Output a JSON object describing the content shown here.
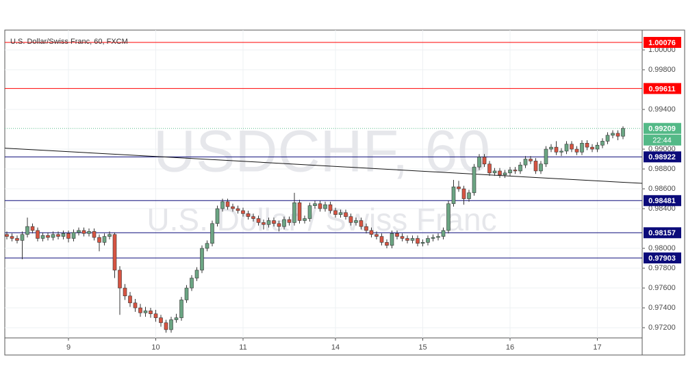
{
  "chart_data": {
    "type": "candlestick",
    "title": "U.S. Dollar/Swiss Franc, 60, FXCM",
    "watermark": "USDCHF, 60",
    "watermark_subtitle": "U.S. Dollar / Swiss Franc",
    "categories": [
      null,
      null,
      null,
      null,
      null,
      null,
      null,
      null,
      null,
      null,
      null,
      null,
      "9",
      null,
      null,
      null,
      null,
      null,
      null,
      null,
      null,
      null,
      null,
      null,
      null,
      null,
      null,
      null,
      null,
      "10",
      null,
      null,
      null,
      null,
      null,
      null,
      null,
      null,
      null,
      null,
      null,
      null,
      null,
      null,
      null,
      null,
      "11",
      null,
      null,
      null,
      null,
      null,
      null,
      null,
      null,
      null,
      null,
      null,
      null,
      null,
      null,
      null,
      null,
      null,
      "14",
      null,
      null,
      null,
      null,
      null,
      null,
      null,
      null,
      null,
      null,
      null,
      null,
      null,
      null,
      null,
      null,
      "15",
      null,
      null,
      null,
      null,
      null,
      null,
      null,
      null,
      null,
      null,
      null,
      null,
      null,
      null,
      null,
      null,
      "16",
      null,
      null,
      null,
      null,
      null,
      null,
      null,
      null,
      null,
      null,
      null,
      null,
      null,
      null,
      null,
      null,
      "17",
      null,
      null,
      null,
      null,
      null
    ],
    "open": [
      0.9814,
      0.9812,
      0.981,
      0.9808,
      0.9814,
      0.9822,
      0.9818,
      0.981,
      0.9813,
      0.9811,
      0.9814,
      0.9812,
      0.9815,
      0.981,
      0.9816,
      0.9818,
      0.9815,
      0.9817,
      0.9811,
      0.9806,
      0.9812,
      0.9814,
      0.9778,
      0.976,
      0.9752,
      0.9745,
      0.974,
      0.9735,
      0.9737,
      0.9734,
      0.973,
      0.9725,
      0.9718,
      0.9728,
      0.973,
      0.9748,
      0.976,
      0.977,
      0.9778,
      0.98,
      0.9805,
      0.9825,
      0.984,
      0.9847,
      0.9842,
      0.984,
      0.9838,
      0.9835,
      0.9832,
      0.983,
      0.9826,
      0.9824,
      0.9828,
      0.9825,
      0.9822,
      0.9829,
      0.9826,
      0.9846,
      0.9828,
      0.983,
      0.9843,
      0.9845,
      0.984,
      0.9844,
      0.9838,
      0.9834,
      0.9836,
      0.9832,
      0.9826,
      0.9828,
      0.9822,
      0.9818,
      0.9814,
      0.9812,
      0.9806,
      0.9803,
      0.9815,
      0.9812,
      0.981,
      0.9808,
      0.981,
      0.9805,
      0.9806,
      0.981,
      0.9811,
      0.9812,
      0.9818,
      0.9845,
      0.9862,
      0.986,
      0.985,
      0.9856,
      0.9882,
      0.9892,
      0.9885,
      0.9876,
      0.9878,
      0.9874,
      0.9876,
      0.9879,
      0.9878,
      0.9884,
      0.989,
      0.9888,
      0.9878,
      0.9885,
      0.99,
      0.9902,
      0.9897,
      0.9898,
      0.9905,
      0.99,
      0.9897,
      0.9906,
      0.9902,
      0.99,
      0.9904,
      0.9908,
      0.9914,
      0.9916,
      0.9913
    ],
    "high": [
      0.9817,
      0.9815,
      0.9813,
      0.9817,
      0.9831,
      0.9825,
      0.9821,
      0.9816,
      0.9816,
      0.9817,
      0.9817,
      0.9818,
      0.9818,
      0.9819,
      0.9821,
      0.9821,
      0.982,
      0.982,
      0.9814,
      0.9815,
      0.9817,
      0.9816,
      0.9782,
      0.9764,
      0.9756,
      0.9749,
      0.9744,
      0.9741,
      0.974,
      0.9738,
      0.9733,
      0.9728,
      0.9731,
      0.9734,
      0.9751,
      0.9763,
      0.9773,
      0.9781,
      0.9803,
      0.9808,
      0.9828,
      0.9843,
      0.985,
      0.985,
      0.9845,
      0.9843,
      0.9841,
      0.9838,
      0.9835,
      0.9833,
      0.9829,
      0.9831,
      0.9831,
      0.9828,
      0.9832,
      0.9832,
      0.9856,
      0.9849,
      0.9833,
      0.9846,
      0.9848,
      0.9848,
      0.9847,
      0.9847,
      0.9841,
      0.9839,
      0.9839,
      0.9835,
      0.9831,
      0.9831,
      0.9825,
      0.9821,
      0.9817,
      0.9815,
      0.9809,
      0.9818,
      0.9818,
      0.9815,
      0.9813,
      0.9813,
      0.9813,
      0.9809,
      0.9813,
      0.9814,
      0.9815,
      0.9821,
      0.9848,
      0.9869,
      0.9868,
      0.9863,
      0.9859,
      0.9885,
      0.9895,
      0.9895,
      0.9888,
      0.9881,
      0.9881,
      0.9879,
      0.9882,
      0.9882,
      0.9887,
      0.9893,
      0.9893,
      0.9891,
      0.9888,
      0.9903,
      0.9905,
      0.9908,
      0.9901,
      0.9908,
      0.9908,
      0.9903,
      0.9909,
      0.9909,
      0.9905,
      0.9907,
      0.9911,
      0.9917,
      0.9919,
      0.9919,
      0.9923
    ],
    "low": [
      0.9809,
      0.9807,
      0.9805,
      0.9789,
      0.9811,
      0.9815,
      0.9807,
      0.9807,
      0.9808,
      0.9808,
      0.9809,
      0.9809,
      0.9806,
      0.9807,
      0.9813,
      0.9812,
      0.9812,
      0.9808,
      0.9797,
      0.9803,
      0.9809,
      0.977,
      0.9733,
      0.9748,
      0.9741,
      0.9736,
      0.9731,
      0.9731,
      0.973,
      0.9726,
      0.9721,
      0.9715,
      0.9715,
      0.9725,
      0.9727,
      0.9745,
      0.9757,
      0.9767,
      0.9775,
      0.9797,
      0.9802,
      0.9822,
      0.9837,
      0.9839,
      0.9837,
      0.9835,
      0.9832,
      0.9829,
      0.9827,
      0.9823,
      0.9819,
      0.9821,
      0.9822,
      0.9817,
      0.9819,
      0.9823,
      0.9823,
      0.9825,
      0.9825,
      0.9827,
      0.984,
      0.9837,
      0.9837,
      0.9835,
      0.9831,
      0.9831,
      0.9829,
      0.9823,
      0.9823,
      0.9819,
      0.9815,
      0.9811,
      0.9809,
      0.9803,
      0.98,
      0.98,
      0.9809,
      0.9807,
      0.9805,
      0.9805,
      0.9802,
      0.9802,
      0.9803,
      0.9807,
      0.9808,
      0.9809,
      0.9815,
      0.9842,
      0.9857,
      0.9844,
      0.9847,
      0.9853,
      0.9879,
      0.9882,
      0.9873,
      0.9873,
      0.9871,
      0.9871,
      0.9873,
      0.9875,
      0.9875,
      0.9881,
      0.9885,
      0.9875,
      0.9875,
      0.9882,
      0.9897,
      0.9894,
      0.9893,
      0.9895,
      0.9897,
      0.9894,
      0.9894,
      0.9899,
      0.9897,
      0.9897,
      0.9901,
      0.9905,
      0.9911,
      0.9909,
      0.991
    ],
    "close": [
      0.9812,
      0.981,
      0.9808,
      0.9814,
      0.9822,
      0.9818,
      0.981,
      0.9813,
      0.9811,
      0.9814,
      0.9812,
      0.9815,
      0.981,
      0.9816,
      0.9818,
      0.9815,
      0.9817,
      0.9811,
      0.9806,
      0.9812,
      0.9814,
      0.9778,
      0.976,
      0.9752,
      0.9745,
      0.974,
      0.9735,
      0.9737,
      0.9734,
      0.973,
      0.9725,
      0.9718,
      0.9728,
      0.973,
      0.9748,
      0.976,
      0.977,
      0.9778,
      0.98,
      0.9805,
      0.9825,
      0.984,
      0.9847,
      0.9842,
      0.984,
      0.9838,
      0.9835,
      0.9832,
      0.983,
      0.9826,
      0.9824,
      0.9828,
      0.9825,
      0.9822,
      0.9829,
      0.9826,
      0.9846,
      0.9828,
      0.983,
      0.9843,
      0.9845,
      0.984,
      0.9844,
      0.9838,
      0.9834,
      0.9836,
      0.9832,
      0.9826,
      0.9828,
      0.9822,
      0.9818,
      0.9814,
      0.9812,
      0.9806,
      0.9803,
      0.9815,
      0.9812,
      0.981,
      0.9808,
      0.981,
      0.9805,
      0.9806,
      0.981,
      0.9811,
      0.9812,
      0.9818,
      0.9845,
      0.9862,
      0.986,
      0.985,
      0.9856,
      0.9882,
      0.9892,
      0.9885,
      0.9876,
      0.9878,
      0.9874,
      0.9876,
      0.9879,
      0.9878,
      0.9884,
      0.989,
      0.9888,
      0.9878,
      0.9885,
      0.99,
      0.9902,
      0.9897,
      0.9898,
      0.9905,
      0.99,
      0.9897,
      0.9906,
      0.9902,
      0.99,
      0.9904,
      0.9908,
      0.9914,
      0.9916,
      0.9913,
      0.99209
    ],
    "up_color": "#6ba583",
    "down_color": "#d75442",
    "ylim": [
      0.97097,
      1.002
    ],
    "yticks": [
      {
        "value": 0.972,
        "label": "0.97200"
      },
      {
        "value": 0.974,
        "label": "0.97400"
      },
      {
        "value": 0.976,
        "label": "0.97600"
      },
      {
        "value": 0.978,
        "label": "0.97800"
      },
      {
        "value": 0.98,
        "label": "0.98000"
      },
      {
        "value": 0.984,
        "label": "0.98400"
      },
      {
        "value": 0.986,
        "label": "0.98600"
      },
      {
        "value": 0.988,
        "label": "0.98800"
      },
      {
        "value": 0.99,
        "label": "0.99000"
      },
      {
        "value": 0.994,
        "label": "0.99400"
      },
      {
        "value": 0.998,
        "label": "0.99800"
      },
      {
        "value": 1.0,
        "label": "1.00000"
      }
    ],
    "grid": true,
    "levels": [
      {
        "value": 1.00076,
        "color": "#ff0000"
      },
      {
        "value": 0.99611,
        "color": "#ff0000"
      },
      {
        "value": 0.98922,
        "color": "#0b0b7a"
      },
      {
        "value": 0.98481,
        "color": "#0b0b7a"
      },
      {
        "value": 0.98157,
        "color": "#0b0b7a"
      },
      {
        "value": 0.97903,
        "color": "#0b0b7a"
      }
    ],
    "trend_line": [
      0.9901,
      0.98655
    ],
    "last_price": 0.99209,
    "last_price_color": "#53b987",
    "countdown": "22:44"
  }
}
